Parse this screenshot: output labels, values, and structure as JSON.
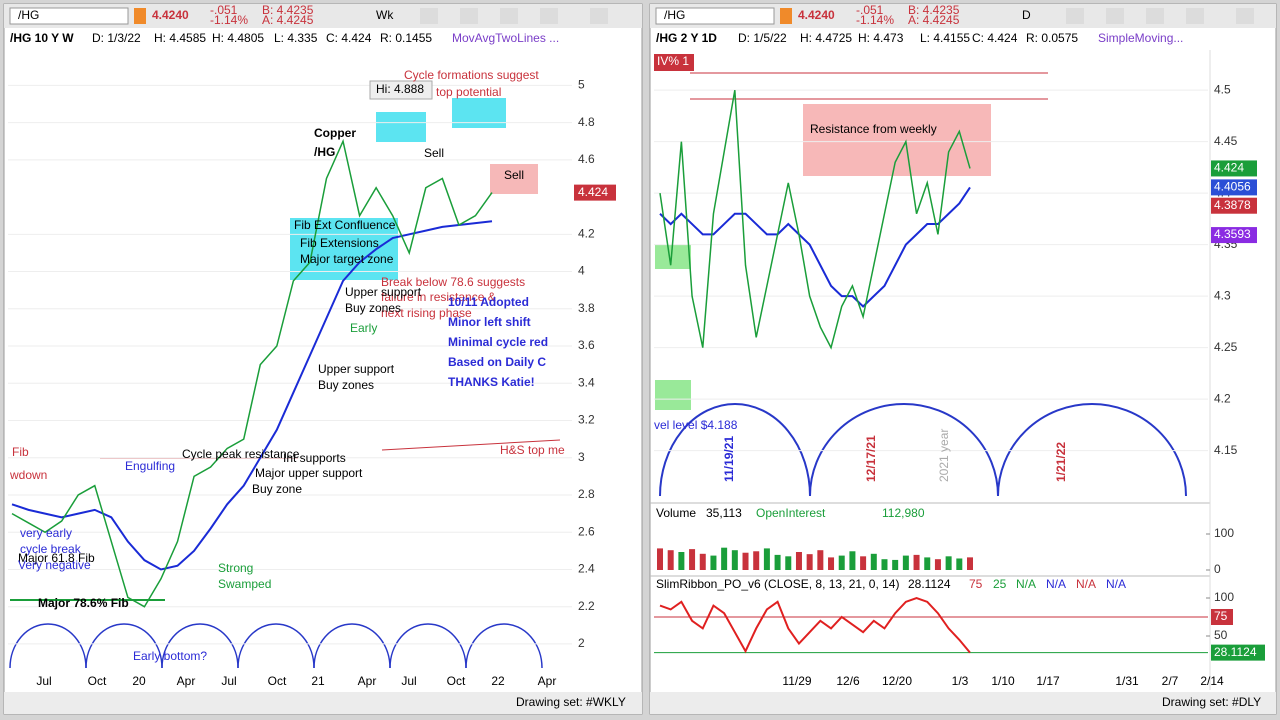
{
  "left": {
    "toolbar": [
      "/HG",
      "4.4240",
      "-.051",
      "-1.14%",
      "B: 4.4235",
      "A: 4.4245",
      "Wk"
    ],
    "header": [
      "/HG 10 Y W",
      "D: 1/3/22",
      "H: 4.4585",
      "H: 4.4805",
      "L: 4.335",
      "C: 4.424",
      "R: 0.1455",
      "MovAvgTwoLines ..."
    ],
    "ylim": [
      1.86,
      5.19
    ],
    "yticks": [
      2,
      2.2,
      2.4,
      2.6,
      2.8,
      3,
      3.2,
      3.4,
      3.6,
      3.8,
      4,
      4.2,
      4.6,
      4.8,
      5
    ],
    "xlabels": [
      "Jul",
      "Oct",
      "20",
      "Apr",
      "Jul",
      "Oct",
      "21",
      "Apr",
      "Jul",
      "Oct",
      "22",
      "Apr"
    ],
    "close": [
      2.7,
      2.65,
      2.6,
      2.66,
      2.8,
      2.85,
      2.55,
      2.25,
      2.2,
      2.35,
      2.55,
      2.9,
      2.95,
      3.05,
      3.1,
      3.5,
      3.6,
      3.95,
      4.05,
      4.5,
      4.7,
      4.3,
      4.45,
      4.3,
      4.1,
      4.45,
      4.5,
      4.25,
      4.3,
      4.424
    ],
    "average": [
      2.75,
      2.72,
      2.7,
      2.68,
      2.7,
      2.72,
      2.68,
      2.55,
      2.45,
      2.4,
      2.42,
      2.5,
      2.62,
      2.75,
      2.85,
      3.0,
      3.15,
      3.35,
      3.55,
      3.75,
      3.95,
      4.05,
      4.12,
      4.18,
      4.2,
      4.22,
      4.24,
      4.25,
      4.26,
      4.27
    ],
    "last": 4.424,
    "high_label": "Hi: 4.888",
    "annotations": [
      "Cycle formations suggest",
      "top potential",
      "Copper",
      "/HG",
      "Sell",
      "Sell",
      "Fib Ext Confluence",
      "Fib Extensions",
      "Major target zone",
      "Break below 78.6 suggests",
      "failure in resistance &",
      "next rising phase",
      "Upper support",
      "Buy zones",
      "10/11 Adopted",
      "Minor left shift",
      "Minimal cycle red",
      "Based on Daily C",
      "THANKS Katie!",
      "Early",
      "Upper support",
      "Buy zones",
      "H&S top me",
      "Cycle peak resistance",
      "Int supports",
      "Engulfing",
      "Major upper support",
      "Buy zone",
      "Fib",
      "wdown",
      "very early",
      "cycle break",
      "Major 61.8 Fib",
      "Very negative",
      "Strong",
      "Swamped",
      "Major 78.6% Fib",
      "Early bottom?"
    ],
    "drawing_set": "Drawing set: #WKLY"
  },
  "right": {
    "toolbar": [
      "/HG",
      "4.4240",
      "-.051",
      "-1.14%",
      "B: 4.4235",
      "A: 4.4245",
      "D"
    ],
    "header": [
      "/HG 2 Y 1D",
      "D: 1/5/22",
      "H: 4.4725",
      "H: 4.473",
      "L: 4.4155",
      "C: 4.424",
      "R: 0.0575",
      "SimpleMoving..."
    ],
    "ylim": [
      4.104,
      4.539
    ],
    "yticks": [
      4.15,
      4.2,
      4.25,
      4.3,
      4.35,
      4.4,
      4.45,
      4.5
    ],
    "xlabels": [
      "11/29",
      "12/6",
      "12/20",
      "1/3",
      "1/10",
      "1/17",
      "1/31",
      "2/7",
      "2/14"
    ],
    "close": [
      4.4,
      4.33,
      4.45,
      4.3,
      4.25,
      4.38,
      4.44,
      4.5,
      4.33,
      4.26,
      4.31,
      4.36,
      4.41,
      4.36,
      4.3,
      4.27,
      4.25,
      4.29,
      4.31,
      4.28,
      4.33,
      4.38,
      4.43,
      4.45,
      4.38,
      4.41,
      4.36,
      4.44,
      4.46,
      4.424
    ],
    "average": [
      4.38,
      4.37,
      4.38,
      4.37,
      4.36,
      4.36,
      4.37,
      4.38,
      4.38,
      4.37,
      4.36,
      4.36,
      4.37,
      4.36,
      4.35,
      4.33,
      4.31,
      4.3,
      4.3,
      4.29,
      4.3,
      4.31,
      4.33,
      4.35,
      4.36,
      4.37,
      4.37,
      4.38,
      4.39,
      4.4056
    ],
    "price_tags": [
      {
        "value": 4.424,
        "color": "#1a9e3a"
      },
      {
        "value": 4.4056,
        "color": "#2b4fd6"
      },
      {
        "value": 4.3878,
        "color": "#c8323c"
      },
      {
        "value": 4.3593,
        "color": "#8a2be2"
      }
    ],
    "annotations": [
      "IV% 1",
      "Resistance from weekly",
      "vel level $4.188",
      "11/19/21",
      "12/17/21",
      "1/21/22",
      "2021 year"
    ],
    "volume": {
      "labels": [
        "Volume",
        "35,113",
        "OpenInterest",
        "112,980"
      ],
      "ylim": [
        0,
        125
      ],
      "yticks": [
        0,
        100
      ],
      "values": [
        60,
        55,
        50,
        58,
        45,
        40,
        62,
        55,
        48,
        52,
        60,
        42,
        38,
        50,
        44,
        55,
        35,
        40,
        52,
        38,
        45,
        30,
        28,
        40,
        42,
        35,
        30,
        38,
        32,
        35.113
      ]
    },
    "oscillator": {
      "labels": [
        "SlimRibbon_PO_v6 (CLOSE, 8, 13, 21, 0, 14)",
        "28.1124",
        "75",
        "25",
        "N/A",
        "N/A",
        "N/A",
        "N/A"
      ],
      "ylim": [
        18.4,
        107.9
      ],
      "yticks": [
        50,
        100
      ],
      "tags": [
        75,
        28.1124
      ],
      "values": [
        90,
        85,
        95,
        70,
        60,
        90,
        80,
        55,
        30,
        60,
        85,
        95,
        60,
        40,
        55,
        70,
        60,
        75,
        65,
        55,
        70,
        60,
        80,
        95,
        100,
        95,
        80,
        60,
        45,
        28.1124
      ]
    },
    "drawing_set": "Drawing set: #DLY"
  }
}
